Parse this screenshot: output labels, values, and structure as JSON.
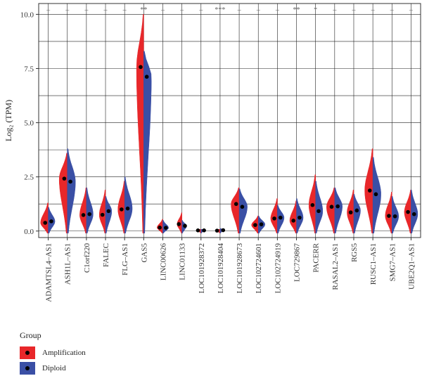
{
  "chart_data": {
    "type": "split-violin",
    "ylabel": "Log₂ (TPM)",
    "ylim": [
      -0.3,
      10.5
    ],
    "yticks": [
      0.0,
      2.5,
      5.0,
      7.5,
      10.0
    ],
    "ytick_labels": [
      "0.0",
      "2.5",
      "5.0",
      "7.5",
      "10.0"
    ],
    "categories": [
      "ADAMTSL4–AS1",
      "ASH1L–AS1",
      "C1orf220",
      "FALEC",
      "FLG–AS1",
      "GAS5",
      "LINC00626",
      "LINC01133",
      "LOC101928372",
      "LOC101928404",
      "LOC101928673",
      "LOC102724601",
      "LOC102724919",
      "LOC729867",
      "PACERR",
      "RASAL2–AS1",
      "RGS5",
      "RUSC1–AS1",
      "SMG7–AS1",
      "UBE2Q1–AS1"
    ],
    "significance": [
      "–",
      "–",
      "–",
      "–",
      "–",
      "**",
      "–",
      "–",
      "–",
      "***",
      "–",
      "–",
      "–",
      "**",
      "*",
      "–",
      "–",
      "–",
      "–",
      "–"
    ],
    "series": [
      {
        "name": "Amplification",
        "color": "#e8272a",
        "median": [
          0.38,
          2.42,
          0.74,
          0.75,
          1.0,
          7.57,
          0.16,
          0.32,
          0.03,
          0.02,
          1.25,
          0.28,
          0.58,
          0.48,
          1.2,
          1.12,
          0.86,
          1.87,
          0.7,
          0.88
        ],
        "max": [
          1.3,
          3.6,
          2.0,
          1.9,
          2.3,
          10.0,
          0.55,
          0.85,
          0.08,
          0.08,
          2.0,
          0.7,
          1.5,
          1.4,
          2.6,
          2.0,
          1.9,
          3.8,
          1.8,
          1.9
        ],
        "width": [
          0.8,
          0.85,
          0.7,
          0.65,
          0.7,
          0.75,
          0.6,
          0.5,
          0.3,
          0.3,
          0.85,
          0.7,
          0.7,
          0.7,
          0.7,
          0.85,
          0.7,
          0.85,
          0.7,
          0.7
        ]
      },
      {
        "name": "Diploid",
        "color": "#3a4fa5",
        "median": [
          0.45,
          2.28,
          0.78,
          0.92,
          1.04,
          7.12,
          0.15,
          0.24,
          0.03,
          0.04,
          1.12,
          0.31,
          0.62,
          0.62,
          0.92,
          1.14,
          0.95,
          1.7,
          0.68,
          0.78
        ],
        "max": [
          1.1,
          3.8,
          2.0,
          1.6,
          2.5,
          8.3,
          0.5,
          0.5,
          0.08,
          0.12,
          1.95,
          0.7,
          1.2,
          1.5,
          2.3,
          2.0,
          1.7,
          3.4,
          1.6,
          1.9
        ],
        "width": [
          0.7,
          0.85,
          0.7,
          0.65,
          0.8,
          0.8,
          0.6,
          0.5,
          0.3,
          0.3,
          0.85,
          0.7,
          0.7,
          0.7,
          0.75,
          0.8,
          0.7,
          0.85,
          0.7,
          0.7
        ]
      }
    ]
  },
  "legend": {
    "title": "Group",
    "items": [
      {
        "label": "Amplification",
        "color": "#e8272a"
      },
      {
        "label": "Diploid",
        "color": "#3a4fa5"
      }
    ]
  }
}
